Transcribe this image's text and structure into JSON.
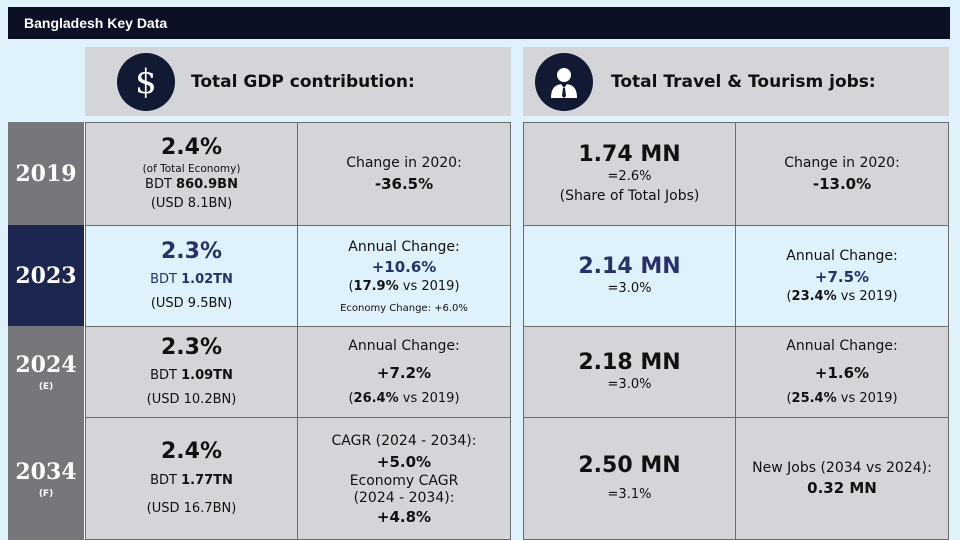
{
  "title": "Bangladesh Key Data",
  "headers": {
    "gdp": "Total GDP contribution:",
    "jobs": "Total Travel & Tourism jobs:"
  },
  "icons": {
    "gdp": "dollar-icon",
    "jobs": "person-icon"
  },
  "colors": {
    "navy": "#1c2650",
    "grey": "#75777a",
    "highlight": "#dff1fb",
    "accent_text": "#28306b"
  },
  "rows": [
    {
      "year": "2019",
      "year_sub": "",
      "gdp_pct": "2.4%",
      "gdp_share_note": "(of Total Economy)",
      "bdt_prefix": "BDT ",
      "bdt_value": "860.9BN",
      "usd": "(USD 8.1BN)",
      "gdp_change_label": "Change in 2020:",
      "gdp_change_value": "-36.5%",
      "jobs_value": "1.74 MN",
      "jobs_share": "=2.6%",
      "jobs_share_note": "(Share of Total Jobs)",
      "jobs_change_label": "Change in 2020:",
      "jobs_change_value": "-13.0%"
    },
    {
      "year": "2023",
      "year_sub": "",
      "gdp_pct": "2.3%",
      "bdt_prefix": "BDT ",
      "bdt_value": "1.02TN",
      "usd": "(USD 9.5BN)",
      "gdp_change_label": "Annual Change:",
      "gdp_change_value": "+10.6%",
      "gdp_vs_pct": "17.9%",
      "gdp_vs_rest": " vs 2019)",
      "economy_change": "Economy Change: +6.0%",
      "jobs_value": "2.14 MN",
      "jobs_share": "=3.0%",
      "jobs_change_label": "Annual Change:",
      "jobs_change_value": "+7.5%",
      "jobs_vs_pct": "23.4%",
      "jobs_vs_rest": " vs 2019)"
    },
    {
      "year": "2024",
      "year_sub": "(E)",
      "gdp_pct": "2.3%",
      "bdt_prefix": "BDT ",
      "bdt_value": "1.09TN",
      "usd": "(USD 10.2BN)",
      "gdp_change_label": "Annual Change:",
      "gdp_change_value": "+7.2%",
      "gdp_vs_pct": "26.4%",
      "gdp_vs_rest": " vs 2019)",
      "jobs_value": "2.18 MN",
      "jobs_share": "=3.0%",
      "jobs_change_label": "Annual Change:",
      "jobs_change_value": "+1.6%",
      "jobs_vs_pct": "25.4%",
      "jobs_vs_rest": " vs 2019)"
    },
    {
      "year": "2034",
      "year_sub": "(F)",
      "gdp_pct": "2.4%",
      "bdt_prefix": "BDT ",
      "bdt_value": "1.77TN",
      "usd": "(USD 16.7BN)",
      "cagr_label": "CAGR (2024 - 2034):",
      "cagr_value": "+5.0%",
      "economy_cagr_label": "Economy CAGR",
      "economy_cagr_period": "(2024 - 2034):",
      "economy_cagr_value": "+4.8%",
      "jobs_value": "2.50 MN",
      "jobs_share": "=3.1%",
      "new_jobs_label": "New Jobs (2034 vs 2024):",
      "new_jobs_value": "0.32 MN"
    }
  ]
}
